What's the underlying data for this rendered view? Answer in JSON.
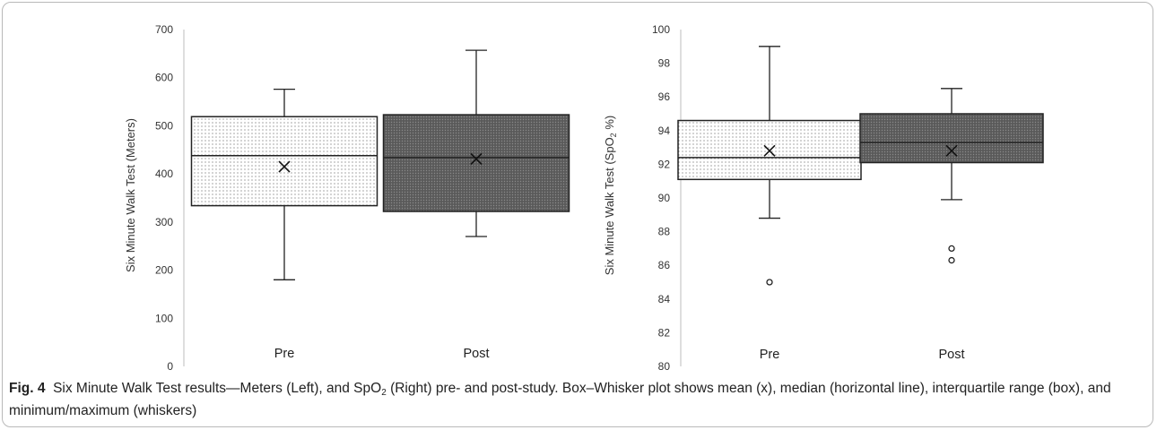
{
  "chart_data": [
    {
      "type": "box",
      "ylabel": "Six Minute Walk Test (Meters)",
      "ylim": [
        0,
        700
      ],
      "yticks": [
        0,
        100,
        200,
        300,
        400,
        500,
        600,
        700
      ],
      "categories": [
        "Pre",
        "Post"
      ],
      "boxes": [
        {
          "category": "Pre",
          "min": 180,
          "q1": 334,
          "median": 438,
          "q3": 519,
          "max": 576,
          "mean": 415,
          "outliers": [],
          "fill": "dots"
        },
        {
          "category": "Post",
          "min": 270,
          "q1": 322,
          "median": 434,
          "q3": 523,
          "max": 657,
          "mean": 431,
          "outliers": [],
          "fill": "dark"
        }
      ]
    },
    {
      "type": "box",
      "ylabel_prefix": "Six Minute Walk Test (SpO",
      "ylabel_sub": "2",
      "ylabel_suffix": " %)",
      "ylim": [
        80,
        100
      ],
      "yticks": [
        80,
        82,
        84,
        86,
        88,
        90,
        92,
        94,
        96,
        98,
        100
      ],
      "categories": [
        "Pre",
        "Post"
      ],
      "boxes": [
        {
          "category": "Pre",
          "min": 88.8,
          "q1": 91.1,
          "median": 92.4,
          "q3": 94.6,
          "max": 99.0,
          "mean": 92.8,
          "outliers": [
            85.0
          ],
          "fill": "dots"
        },
        {
          "category": "Post",
          "min": 89.9,
          "q1": 92.1,
          "median": 93.3,
          "q3": 95.0,
          "max": 96.5,
          "mean": 92.8,
          "outliers": [
            87.0,
            86.3
          ],
          "fill": "dark"
        }
      ]
    }
  ],
  "caption": {
    "fig_label": "Fig. 4",
    "text_1": "  Six Minute Walk Test results—Meters (Left), and SpO",
    "sub": "2",
    "text_2": " (Right) pre- and post-study. Box–Whisker plot shows mean (x), median (horizontal line), interquartile range (box), and minimum/maximum (whiskers)"
  }
}
